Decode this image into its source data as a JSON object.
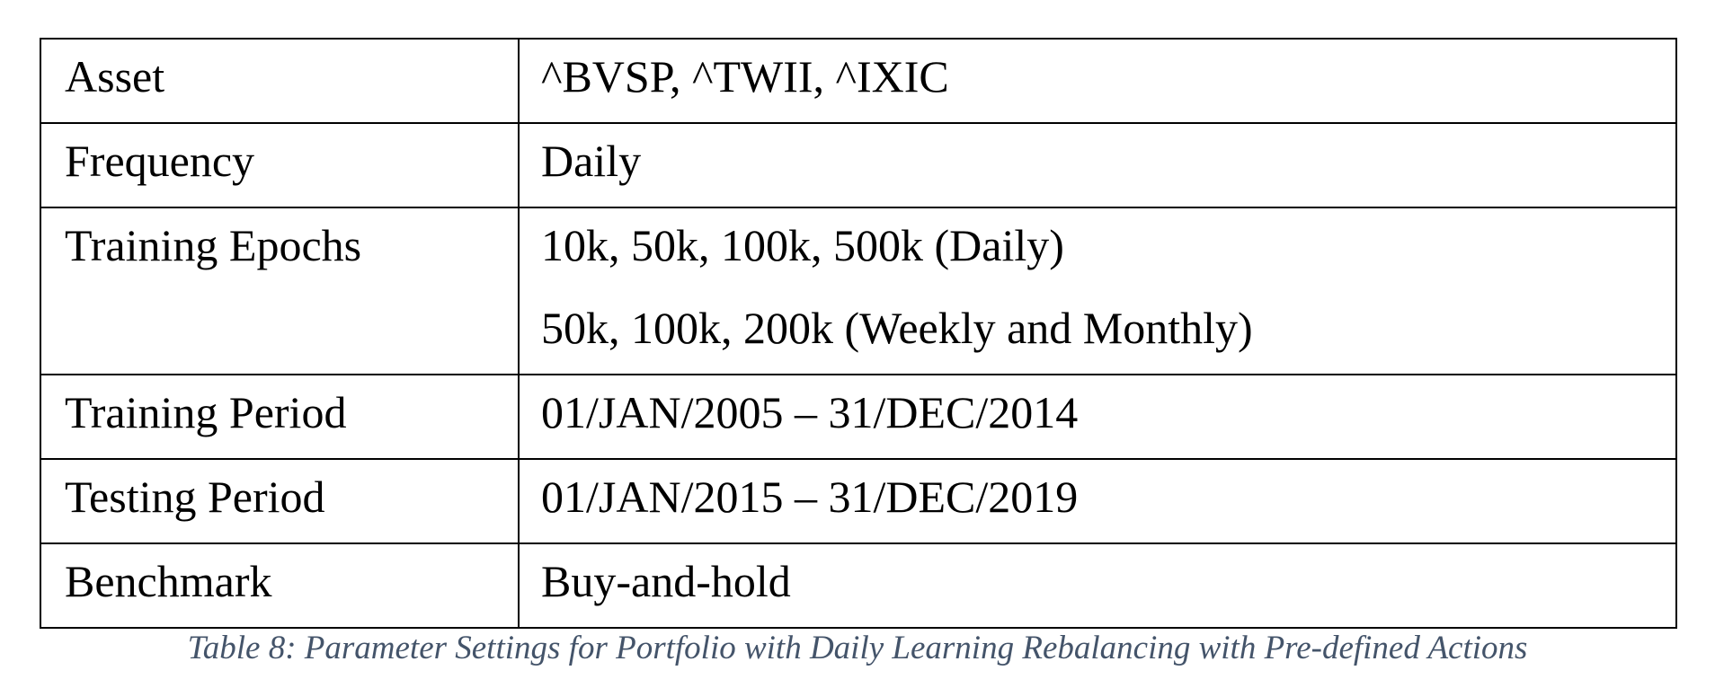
{
  "table": {
    "rows": [
      {
        "label": "Asset",
        "values": [
          "^BVSP, ^TWII, ^IXIC"
        ]
      },
      {
        "label": "Frequency",
        "values": [
          "Daily"
        ]
      },
      {
        "label": "Training Epochs",
        "values": [
          "10k, 50k, 100k, 500k (Daily)",
          "50k, 100k, 200k (Weekly and Monthly)"
        ]
      },
      {
        "label": "Training Period",
        "values": [
          "01/JAN/2005 – 31/DEC/2014"
        ]
      },
      {
        "label": "Testing Period",
        "values": [
          "01/JAN/2015 – 31/DEC/2019"
        ]
      },
      {
        "label": "Benchmark",
        "values": [
          "Buy-and-hold"
        ]
      }
    ]
  },
  "caption": "Table 8: Parameter Settings for Portfolio with Daily Learning Rebalancing with Pre-defined Actions",
  "colors": {
    "caption": "#44546a",
    "border": "#000000",
    "text": "#000000"
  }
}
